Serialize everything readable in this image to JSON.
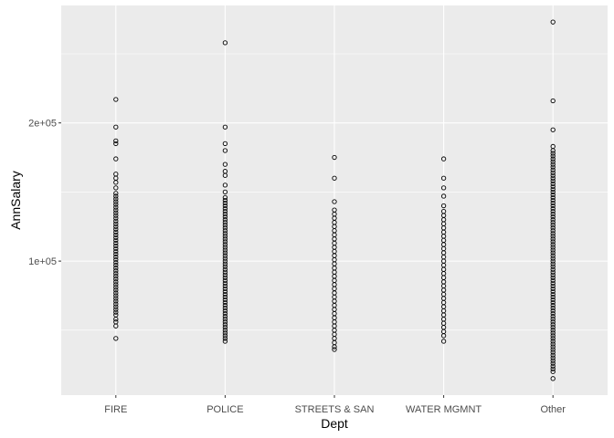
{
  "chart_data": {
    "type": "scatter",
    "xlabel": "Dept",
    "ylabel": "AnnSalary",
    "categories": [
      "FIRE",
      "POLICE",
      "STREETS & SAN",
      "WATER MGMNT",
      "Other"
    ],
    "y_ticks": [
      {
        "value": 100000,
        "label": "1e+05"
      },
      {
        "value": 200000,
        "label": "2e+05"
      }
    ],
    "ylim": [
      3000,
      285000
    ],
    "grid": true,
    "legend": "none",
    "colors": {
      "panel": "#ebebeb",
      "grid_major": "#ffffff",
      "point_stroke": "#000000"
    },
    "series": [
      {
        "category": "FIRE",
        "values": [
          217000,
          197000,
          187000,
          185000,
          174000,
          163000,
          160000,
          157000,
          153000,
          149000,
          147000,
          145000,
          143000,
          141000,
          139000,
          137000,
          135000,
          133000,
          131000,
          129000,
          127000,
          125000,
          123000,
          121000,
          119000,
          117000,
          115000,
          113000,
          111000,
          109000,
          107000,
          105000,
          103000,
          101000,
          99000,
          97000,
          95000,
          93000,
          91000,
          89000,
          87000,
          85000,
          83000,
          81000,
          79000,
          77000,
          75000,
          73000,
          71000,
          69000,
          67000,
          65000,
          63000,
          61000,
          58000,
          56000,
          53000,
          44000
        ]
      },
      {
        "category": "POLICE",
        "values": [
          258000,
          197000,
          185000,
          180000,
          170000,
          165000,
          162000,
          155000,
          150000,
          146000,
          144000,
          142000,
          140000,
          138000,
          136000,
          134000,
          132000,
          130000,
          128000,
          126000,
          124000,
          122000,
          120000,
          118000,
          116000,
          114000,
          112000,
          110000,
          108000,
          106000,
          104000,
          102000,
          100000,
          98000,
          96000,
          94000,
          92000,
          90000,
          88000,
          86000,
          84000,
          82000,
          80000,
          78000,
          76000,
          74000,
          72000,
          70000,
          68000,
          66000,
          64000,
          62000,
          60000,
          58000,
          56000,
          54000,
          52000,
          50000,
          48000,
          46000,
          44000,
          42000
        ]
      },
      {
        "category": "STREETS & SAN",
        "values": [
          175000,
          160000,
          143000,
          137000,
          134000,
          131000,
          128000,
          125000,
          122000,
          119000,
          116000,
          113000,
          110000,
          107000,
          104000,
          101000,
          98000,
          95000,
          92000,
          89000,
          86000,
          83000,
          80000,
          77000,
          74000,
          71000,
          68000,
          65000,
          62000,
          59000,
          56000,
          53000,
          50000,
          47000,
          44000,
          41000,
          38000,
          36000
        ]
      },
      {
        "category": "WATER MGMNT",
        "values": [
          174000,
          160000,
          153000,
          147000,
          140000,
          136000,
          133000,
          130000,
          127000,
          124000,
          121000,
          118000,
          115000,
          112000,
          109000,
          106000,
          103000,
          100000,
          97000,
          94000,
          91000,
          88000,
          85000,
          82000,
          79000,
          76000,
          73000,
          70000,
          67000,
          64000,
          61000,
          58000,
          55000,
          52000,
          49000,
          46000,
          42000
        ]
      },
      {
        "category": "Other",
        "values": [
          273000,
          216000,
          195000,
          183000,
          180000,
          178000,
          176000,
          174000,
          172000,
          170000,
          168000,
          166000,
          164000,
          162000,
          160000,
          158000,
          156000,
          154000,
          152000,
          150000,
          148000,
          146000,
          144000,
          142000,
          140000,
          138000,
          136000,
          134000,
          132000,
          130000,
          128000,
          126000,
          124000,
          122000,
          120000,
          118000,
          116000,
          114000,
          112000,
          110000,
          108000,
          106000,
          104000,
          102000,
          100000,
          98000,
          96000,
          94000,
          92000,
          90000,
          88000,
          86000,
          84000,
          82000,
          80000,
          78000,
          76000,
          74000,
          72000,
          70000,
          68000,
          66000,
          64000,
          62000,
          60000,
          58000,
          56000,
          54000,
          52000,
          50000,
          48000,
          46000,
          44000,
          42000,
          40000,
          38000,
          36000,
          34000,
          32000,
          30000,
          28000,
          26000,
          24000,
          22000,
          20000,
          15000
        ]
      }
    ]
  }
}
